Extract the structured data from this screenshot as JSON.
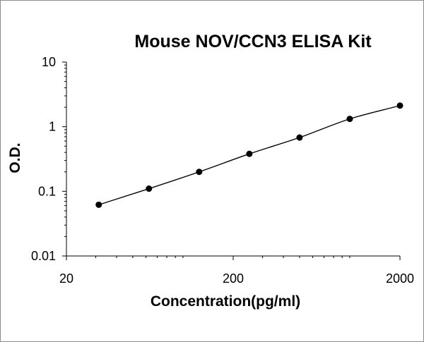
{
  "chart_data": {
    "type": "scatter",
    "title": "Mouse NOV/CCN3 ELISA Kit",
    "xlabel": "Concentration(pg/ml)",
    "ylabel": "O.D.",
    "x_scale": "log",
    "y_scale": "log",
    "xlim": [
      20,
      2000
    ],
    "ylim": [
      0.01,
      10
    ],
    "x_tick_labels": [
      "20",
      "200",
      "2000"
    ],
    "y_tick_labels": [
      "10",
      "1",
      "0.1",
      "0.01"
    ],
    "grid": false,
    "legend": "none",
    "series": [
      {
        "points": [
          {
            "x": 31.25,
            "y": 0.062
          },
          {
            "x": 62.5,
            "y": 0.11
          },
          {
            "x": 125,
            "y": 0.2
          },
          {
            "x": 250,
            "y": 0.38
          },
          {
            "x": 500,
            "y": 0.68
          },
          {
            "x": 1000,
            "y": 1.32
          },
          {
            "x": 2000,
            "y": 2.12
          }
        ]
      }
    ],
    "colors": {
      "marker": "#000000",
      "line": "#000000",
      "axis": "#000000"
    }
  }
}
